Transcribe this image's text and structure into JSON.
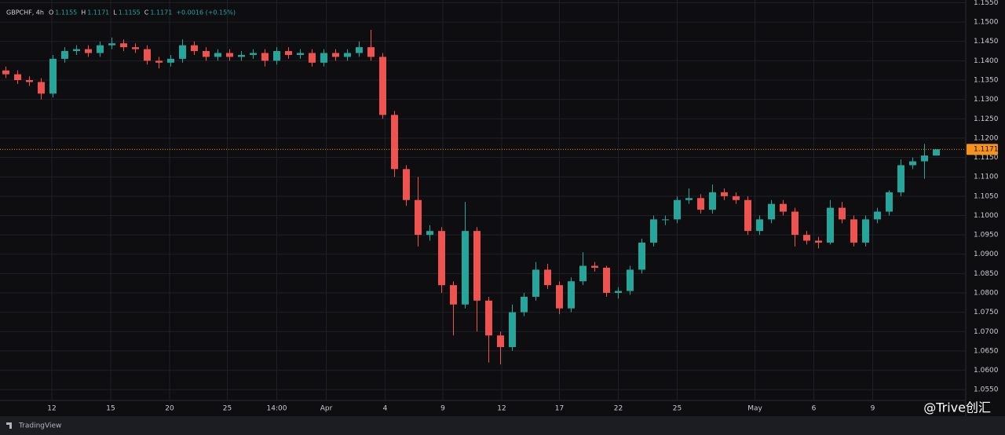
{
  "chart_data": {
    "type": "candlestick",
    "symbol": "GBPCHF, 4h",
    "ohlc": [
      {
        "label": "O",
        "value": 1.1155
      },
      {
        "label": "H",
        "value": 1.1171
      },
      {
        "label": "L",
        "value": 1.1155
      },
      {
        "label": "C",
        "value": 1.1171
      }
    ],
    "change": "+0.0016 (+0.15%)",
    "last_price": {
      "value": 1.1171,
      "label": "1.1171"
    },
    "up_color": "#26a69a",
    "down_color": "#ef5350",
    "last_price_color": "#f7931a",
    "grid": true,
    "x": [
      0,
      1,
      2,
      3,
      4,
      5,
      6,
      7,
      8,
      9,
      10,
      11,
      12,
      13,
      14,
      15,
      16,
      17,
      18,
      19,
      20,
      21,
      22,
      23,
      24,
      25,
      26,
      27,
      28,
      29,
      30,
      31,
      32,
      33,
      34,
      35,
      36,
      37,
      38,
      39,
      40,
      41,
      42,
      43,
      44,
      45,
      46,
      47,
      48,
      49,
      50,
      51,
      52,
      53,
      54,
      55,
      56,
      57,
      58,
      59,
      60,
      61,
      62,
      63,
      64,
      65,
      66,
      67,
      68,
      69,
      70,
      71,
      72,
      73,
      74,
      75,
      76,
      77,
      78,
      79
    ],
    "open": [
      1.1375,
      1.1365,
      1.135,
      1.1345,
      1.1315,
      1.1405,
      1.1425,
      1.143,
      1.142,
      1.144,
      1.1445,
      1.1435,
      1.143,
      1.14,
      1.1395,
      1.1405,
      1.144,
      1.1425,
      1.141,
      1.142,
      1.141,
      1.1415,
      1.142,
      1.14,
      1.1425,
      1.1415,
      1.142,
      1.1395,
      1.142,
      1.141,
      1.142,
      1.1435,
      1.141,
      1.126,
      1.112,
      1.104,
      1.095,
      1.096,
      1.082,
      1.077,
      1.096,
      1.078,
      1.069,
      1.066,
      1.075,
      1.079,
      1.086,
      1.082,
      1.076,
      1.083,
      1.087,
      1.0865,
      1.08,
      1.0805,
      1.086,
      1.093,
      1.099,
      1.099,
      1.104,
      1.1045,
      1.1015,
      1.106,
      1.105,
      1.104,
      1.096,
      1.099,
      1.103,
      1.101,
      1.095,
      1.0935,
      1.093,
      1.102,
      1.099,
      1.093,
      1.099,
      1.101,
      1.106,
      1.113,
      1.114,
      1.1155
    ],
    "high": [
      1.1385,
      1.1375,
      1.136,
      1.1355,
      1.1415,
      1.1435,
      1.144,
      1.144,
      1.145,
      1.146,
      1.1455,
      1.1445,
      1.144,
      1.141,
      1.1415,
      1.1455,
      1.145,
      1.1435,
      1.143,
      1.143,
      1.1425,
      1.143,
      1.143,
      1.1435,
      1.1435,
      1.143,
      1.143,
      1.143,
      1.143,
      1.143,
      1.145,
      1.148,
      1.142,
      1.127,
      1.113,
      1.11,
      1.0975,
      1.097,
      1.083,
      1.1035,
      1.097,
      1.079,
      1.07,
      1.077,
      1.08,
      1.088,
      1.0875,
      1.083,
      1.084,
      1.0905,
      1.088,
      1.087,
      1.0815,
      1.087,
      1.094,
      1.1,
      1.1,
      1.105,
      1.107,
      1.1055,
      1.108,
      1.107,
      1.106,
      1.105,
      1.1,
      1.104,
      1.104,
      1.102,
      1.096,
      1.0945,
      1.104,
      1.1035,
      1.1,
      1.1,
      1.102,
      1.1065,
      1.1145,
      1.115,
      1.1185,
      1.1171
    ],
    "low": [
      1.1355,
      1.134,
      1.1335,
      1.13,
      1.1305,
      1.1395,
      1.1415,
      1.141,
      1.141,
      1.143,
      1.1425,
      1.142,
      1.139,
      1.138,
      1.1385,
      1.1395,
      1.1415,
      1.14,
      1.14,
      1.14,
      1.14,
      1.1405,
      1.1385,
      1.139,
      1.1405,
      1.1405,
      1.1385,
      1.1385,
      1.14,
      1.14,
      1.141,
      1.14,
      1.125,
      1.11,
      1.1025,
      1.092,
      1.0935,
      1.08,
      1.069,
      1.076,
      1.07,
      1.062,
      1.0615,
      1.065,
      1.074,
      1.078,
      1.081,
      1.0745,
      1.075,
      1.082,
      1.0855,
      1.079,
      1.0785,
      1.0795,
      1.085,
      1.092,
      1.0975,
      1.098,
      1.103,
      1.1005,
      1.1005,
      1.104,
      1.103,
      1.095,
      1.095,
      1.098,
      1.1,
      1.092,
      1.0925,
      1.0915,
      1.0925,
      1.098,
      1.092,
      1.092,
      1.098,
      1.1,
      1.105,
      1.112,
      1.1095,
      1.1155
    ],
    "close": [
      1.1365,
      1.135,
      1.1345,
      1.1315,
      1.1405,
      1.1425,
      1.143,
      1.142,
      1.144,
      1.1445,
      1.1435,
      1.143,
      1.14,
      1.1395,
      1.1405,
      1.144,
      1.1425,
      1.141,
      1.142,
      1.141,
      1.1415,
      1.142,
      1.14,
      1.1425,
      1.1415,
      1.142,
      1.1395,
      1.142,
      1.141,
      1.142,
      1.1435,
      1.141,
      1.126,
      1.112,
      1.104,
      1.095,
      1.096,
      1.082,
      1.077,
      1.096,
      1.078,
      1.069,
      1.066,
      1.075,
      1.079,
      1.086,
      1.082,
      1.076,
      1.083,
      1.087,
      1.0865,
      1.08,
      1.0805,
      1.086,
      1.093,
      1.099,
      1.099,
      1.104,
      1.1045,
      1.1015,
      1.106,
      1.105,
      1.104,
      1.096,
      1.099,
      1.103,
      1.101,
      1.095,
      1.0935,
      1.093,
      1.102,
      1.099,
      1.093,
      1.099,
      1.101,
      1.106,
      1.113,
      1.114,
      1.1155,
      1.1171
    ],
    "xlim": [
      -0.5,
      81.5
    ],
    "xticks": [
      {
        "value": 3.9,
        "label": "12"
      },
      {
        "value": 8.9,
        "label": "15"
      },
      {
        "value": 13.9,
        "label": "20"
      },
      {
        "value": 18.8,
        "label": "25"
      },
      {
        "value": 23,
        "label": "14:00"
      },
      {
        "value": 27.2,
        "label": "Apr"
      },
      {
        "value": 32.2,
        "label": "4"
      },
      {
        "value": 37.1,
        "label": "9"
      },
      {
        "value": 42.1,
        "label": "12"
      },
      {
        "value": 47,
        "label": "17"
      },
      {
        "value": 52,
        "label": "22"
      },
      {
        "value": 57,
        "label": "25"
      },
      {
        "value": 63.6,
        "label": "May"
      },
      {
        "value": 68.6,
        "label": "6"
      },
      {
        "value": 73.6,
        "label": "9"
      }
    ],
    "ylim": [
      1.0522,
      1.1557
    ],
    "yticks": [
      {
        "value": 1.055,
        "label": "1.0550"
      },
      {
        "value": 1.06,
        "label": "1.0600"
      },
      {
        "value": 1.065,
        "label": "1.0650"
      },
      {
        "value": 1.07,
        "label": "1.0700"
      },
      {
        "value": 1.075,
        "label": "1.0750"
      },
      {
        "value": 1.08,
        "label": "1.0800"
      },
      {
        "value": 1.085,
        "label": "1.0850"
      },
      {
        "value": 1.09,
        "label": "1.0900"
      },
      {
        "value": 1.095,
        "label": "1.0950"
      },
      {
        "value": 1.1,
        "label": "1.1000"
      },
      {
        "value": 1.105,
        "label": "1.1050"
      },
      {
        "value": 1.11,
        "label": "1.1100"
      },
      {
        "value": 1.115,
        "label": "1.1150"
      },
      {
        "value": 1.12,
        "label": "1.1200"
      },
      {
        "value": 1.125,
        "label": "1.1250"
      },
      {
        "value": 1.13,
        "label": "1.1300"
      },
      {
        "value": 1.135,
        "label": "1.1350"
      },
      {
        "value": 1.14,
        "label": "1.1400"
      },
      {
        "value": 1.145,
        "label": "1.1450"
      },
      {
        "value": 1.15,
        "label": "1.1500"
      },
      {
        "value": 1.155,
        "label": "1.1550"
      }
    ],
    "brand": "TradingView",
    "watermark": "@Trive创汇"
  }
}
